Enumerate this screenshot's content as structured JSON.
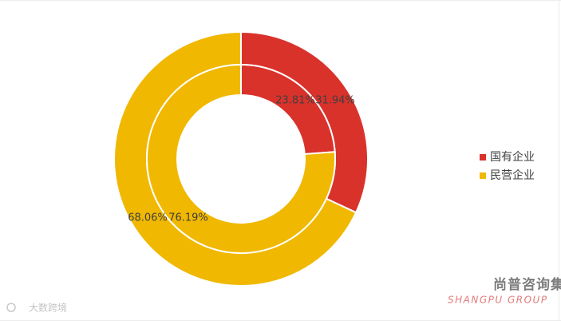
{
  "chart_data": {
    "type": "donut",
    "categories": [
      "国有企业",
      "民营企业"
    ],
    "colors": [
      "#d9322b",
      "#f0b800"
    ],
    "series": [
      {
        "values": [
          31.94,
          68.06
        ],
        "value_labels": [
          "31.94%",
          "68.06%"
        ]
      },
      {
        "values": [
          23.81,
          76.19
        ],
        "value_labels": [
          "23.81%",
          "76.19%"
        ]
      }
    ],
    "legend": "right"
  },
  "watermarks": {
    "brand": "尚普咨询集团",
    "brand_en": "SHANGPU GROUP",
    "source": "大数跨境"
  }
}
